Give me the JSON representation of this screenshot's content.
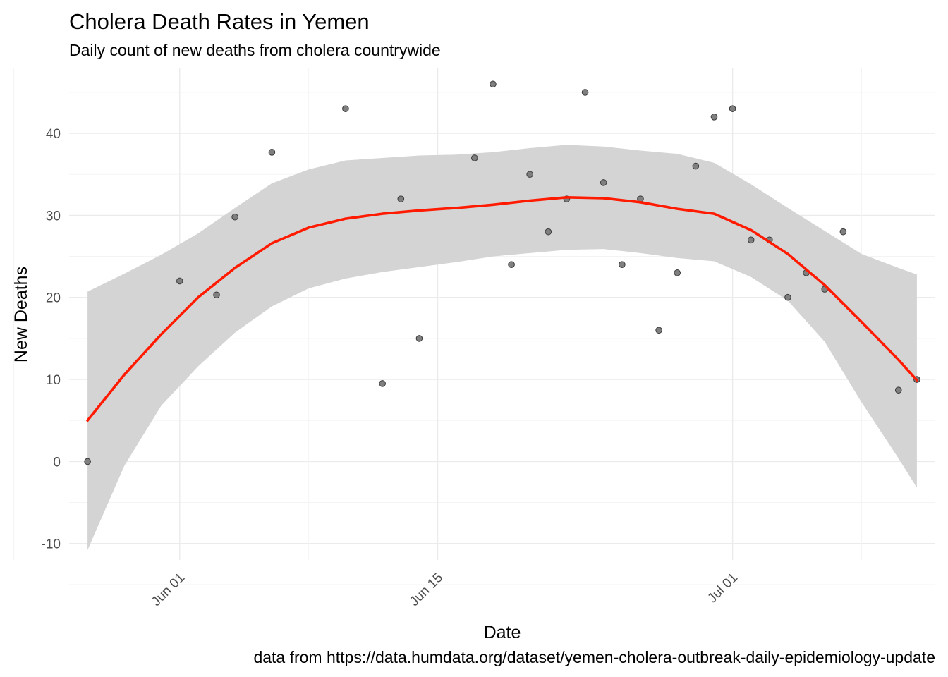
{
  "chart_data": {
    "type": "scatter",
    "title": "Cholera Death Rates in Yemen",
    "subtitle": "Daily count of new deaths from cholera countrywide",
    "xlabel": "Date",
    "ylabel": "New Deaths",
    "caption": "data from https://data.humdata.org/dataset/yemen-cholera-outbreak-daily-epidemiology-update",
    "x_ticks": [
      {
        "date": "2017-06-01",
        "label": "Jun 01"
      },
      {
        "date": "2017-06-15",
        "label": "Jun 15"
      },
      {
        "date": "2017-07-01",
        "label": "Jul 01"
      }
    ],
    "y_ticks": [
      -10,
      0,
      10,
      20,
      30,
      40
    ],
    "xlim": [
      "2017-05-26",
      "2017-07-12"
    ],
    "ylim": [
      -12,
      48
    ],
    "grid": true,
    "colors": {
      "points": "#7f7f7f",
      "smooth_line": "#ff1a00",
      "confidence_band": "#d4d4d4"
    },
    "points": [
      {
        "x": "2017-05-27",
        "y": 0
      },
      {
        "x": "2017-06-01",
        "y": 22
      },
      {
        "x": "2017-06-03",
        "y": 20.3
      },
      {
        "x": "2017-06-04",
        "y": 29.8
      },
      {
        "x": "2017-06-06",
        "y": 37.7
      },
      {
        "x": "2017-06-10",
        "y": 43
      },
      {
        "x": "2017-06-12",
        "y": 9.5
      },
      {
        "x": "2017-06-13",
        "y": 32
      },
      {
        "x": "2017-06-14",
        "y": 15
      },
      {
        "x": "2017-06-17",
        "y": 37
      },
      {
        "x": "2017-06-18",
        "y": 46
      },
      {
        "x": "2017-06-19",
        "y": 24
      },
      {
        "x": "2017-06-20",
        "y": 35
      },
      {
        "x": "2017-06-21",
        "y": 28
      },
      {
        "x": "2017-06-22",
        "y": 32
      },
      {
        "x": "2017-06-23",
        "y": 45
      },
      {
        "x": "2017-06-24",
        "y": 34
      },
      {
        "x": "2017-06-25",
        "y": 24
      },
      {
        "x": "2017-06-26",
        "y": 32
      },
      {
        "x": "2017-06-27",
        "y": 16
      },
      {
        "x": "2017-06-28",
        "y": 23
      },
      {
        "x": "2017-06-29",
        "y": 36
      },
      {
        "x": "2017-06-30",
        "y": 42
      },
      {
        "x": "2017-07-01",
        "y": 43
      },
      {
        "x": "2017-07-02",
        "y": 27
      },
      {
        "x": "2017-07-03",
        "y": 27
      },
      {
        "x": "2017-07-04",
        "y": 20
      },
      {
        "x": "2017-07-05",
        "y": 23
      },
      {
        "x": "2017-07-06",
        "y": 21
      },
      {
        "x": "2017-07-07",
        "y": 28
      },
      {
        "x": "2017-07-10",
        "y": 8.7
      },
      {
        "x": "2017-07-11",
        "y": 10
      }
    ],
    "smooth": [
      {
        "x": "2017-05-27",
        "y": 5.0,
        "lower": -10.8,
        "upper": 20.7
      },
      {
        "x": "2017-05-29",
        "y": 10.6,
        "lower": -0.5,
        "upper": 22.9
      },
      {
        "x": "2017-05-31",
        "y": 15.5,
        "lower": 6.8,
        "upper": 25.2
      },
      {
        "x": "2017-06-02",
        "y": 20.0,
        "lower": 11.6,
        "upper": 27.8
      },
      {
        "x": "2017-06-04",
        "y": 23.6,
        "lower": 15.7,
        "upper": 30.9
      },
      {
        "x": "2017-06-06",
        "y": 26.6,
        "lower": 18.9,
        "upper": 33.9
      },
      {
        "x": "2017-06-08",
        "y": 28.5,
        "lower": 21.1,
        "upper": 35.6
      },
      {
        "x": "2017-06-10",
        "y": 29.6,
        "lower": 22.3,
        "upper": 36.7
      },
      {
        "x": "2017-06-12",
        "y": 30.2,
        "lower": 23.1,
        "upper": 37.0
      },
      {
        "x": "2017-06-14",
        "y": 30.6,
        "lower": 23.7,
        "upper": 37.3
      },
      {
        "x": "2017-06-16",
        "y": 30.9,
        "lower": 24.3,
        "upper": 37.4
      },
      {
        "x": "2017-06-18",
        "y": 31.3,
        "lower": 25.0,
        "upper": 37.7
      },
      {
        "x": "2017-06-20",
        "y": 31.8,
        "lower": 25.4,
        "upper": 38.2
      },
      {
        "x": "2017-06-22",
        "y": 32.2,
        "lower": 25.8,
        "upper": 38.6
      },
      {
        "x": "2017-06-24",
        "y": 32.1,
        "lower": 25.9,
        "upper": 38.4
      },
      {
        "x": "2017-06-26",
        "y": 31.6,
        "lower": 25.4,
        "upper": 37.9
      },
      {
        "x": "2017-06-28",
        "y": 30.8,
        "lower": 24.8,
        "upper": 37.5
      },
      {
        "x": "2017-06-30",
        "y": 30.2,
        "lower": 24.4,
        "upper": 36.4
      },
      {
        "x": "2017-07-02",
        "y": 28.2,
        "lower": 22.5,
        "upper": 33.8
      },
      {
        "x": "2017-07-04",
        "y": 25.3,
        "lower": 19.6,
        "upper": 30.9
      },
      {
        "x": "2017-07-06",
        "y": 21.5,
        "lower": 14.6,
        "upper": 28.1
      },
      {
        "x": "2017-07-08",
        "y": 17.0,
        "lower": 7.2,
        "upper": 25.3
      },
      {
        "x": "2017-07-10",
        "y": 12.4,
        "lower": 0.4,
        "upper": 23.6
      },
      {
        "x": "2017-07-11",
        "y": 9.9,
        "lower": -3.2,
        "upper": 22.8
      }
    ]
  }
}
